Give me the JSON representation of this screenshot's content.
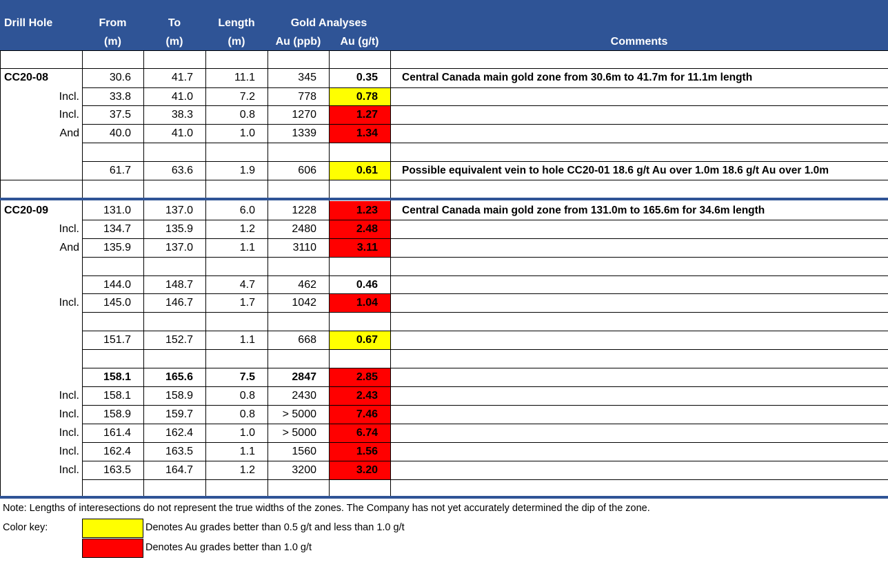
{
  "header": {
    "drill_hole": "Drill Hole",
    "from": "From",
    "from_unit": "(m)",
    "to": "To",
    "to_unit": "(m)",
    "length": "Length",
    "length_unit": "(m)",
    "gold_analyses": "Gold Analyses",
    "au_ppb": "Au (ppb)",
    "au_gt": "Au (g/t)",
    "comments": "Comments"
  },
  "colors": {
    "header_bg": "#2F5496",
    "yellow": "#FFFF00",
    "red": "#FF0000"
  },
  "rows": [
    {
      "hole": "",
      "from": "",
      "to": "",
      "length": "",
      "ppb": "",
      "gt": "",
      "color": "",
      "comment": ""
    },
    {
      "hole": "CC20-08",
      "from": "30.6",
      "to": "41.7",
      "length": "11.1",
      "ppb": "345",
      "gt": "0.35",
      "color": "",
      "comment": "Central Canada main gold zone from 30.6m to 41.7m for 11.1m length"
    },
    {
      "hole": "Incl.",
      "from": "33.8",
      "to": "41.0",
      "length": "7.2",
      "ppb": "778",
      "gt": "0.78",
      "color": "yellow",
      "comment": ""
    },
    {
      "hole": "Incl.",
      "from": "37.5",
      "to": "38.3",
      "length": "0.8",
      "ppb": "1270",
      "gt": "1.27",
      "color": "red",
      "comment": ""
    },
    {
      "hole": "And",
      "from": "40.0",
      "to": "41.0",
      "length": "1.0",
      "ppb": "1339",
      "gt": "1.34",
      "color": "red",
      "comment": ""
    },
    {
      "hole": "",
      "from": "",
      "to": "",
      "length": "",
      "ppb": "",
      "gt": "",
      "color": "",
      "comment": ""
    },
    {
      "hole": "",
      "from": "61.7",
      "to": "63.6",
      "length": "1.9",
      "ppb": "606",
      "gt": "0.61",
      "color": "yellow",
      "comment": "Possible equivalent vein to hole CC20-01 18.6 g/t Au over 1.0m 18.6 g/t Au over 1.0m"
    },
    {
      "hole": "",
      "from": "",
      "to": "",
      "length": "",
      "ppb": "",
      "gt": "",
      "color": "",
      "comment": ""
    },
    {
      "hole": "CC20-09",
      "from": "131.0",
      "to": "137.0",
      "length": "6.0",
      "ppb": "1228",
      "gt": "1.23",
      "color": "red",
      "comment": "Central Canada main gold zone from 131.0m to 165.6m for 34.6m length"
    },
    {
      "hole": "Incl.",
      "from": "134.7",
      "to": "135.9",
      "length": "1.2",
      "ppb": "2480",
      "gt": "2.48",
      "color": "red",
      "comment": ""
    },
    {
      "hole": "And",
      "from": "135.9",
      "to": "137.0",
      "length": "1.1",
      "ppb": "3110",
      "gt": "3.11",
      "color": "red",
      "comment": ""
    },
    {
      "hole": "",
      "from": "",
      "to": "",
      "length": "",
      "ppb": "",
      "gt": "",
      "color": "",
      "comment": ""
    },
    {
      "hole": "",
      "from": "144.0",
      "to": "148.7",
      "length": "4.7",
      "ppb": "462",
      "gt": "0.46",
      "color": "",
      "comment": ""
    },
    {
      "hole": "Incl.",
      "from": "145.0",
      "to": "146.7",
      "length": "1.7",
      "ppb": "1042",
      "gt": "1.04",
      "color": "red",
      "comment": ""
    },
    {
      "hole": "",
      "from": "",
      "to": "",
      "length": "",
      "ppb": "",
      "gt": "",
      "color": "",
      "comment": ""
    },
    {
      "hole": "",
      "from": "151.7",
      "to": "152.7",
      "length": "1.1",
      "ppb": "668",
      "gt": "0.67",
      "color": "yellow",
      "comment": ""
    },
    {
      "hole": "",
      "from": "",
      "to": "",
      "length": "",
      "ppb": "",
      "gt": "",
      "color": "",
      "comment": ""
    },
    {
      "hole": "",
      "from": "158.1",
      "to": "165.6",
      "length": "7.5",
      "ppb": "2847",
      "gt": "2.85",
      "color": "red",
      "comment": "",
      "bold": true
    },
    {
      "hole": "Incl.",
      "from": "158.1",
      "to": "158.9",
      "length": "0.8",
      "ppb": "2430",
      "gt": "2.43",
      "color": "red",
      "comment": ""
    },
    {
      "hole": "Incl.",
      "from": "158.9",
      "to": "159.7",
      "length": "0.8",
      "ppb": "> 5000",
      "gt": "7.46",
      "color": "red",
      "comment": ""
    },
    {
      "hole": "Incl.",
      "from": "161.4",
      "to": "162.4",
      "length": "1.0",
      "ppb": "> 5000",
      "gt": "6.74",
      "color": "red",
      "comment": ""
    },
    {
      "hole": "Incl.",
      "from": "162.4",
      "to": "163.5",
      "length": "1.1",
      "ppb": "1560",
      "gt": "1.56",
      "color": "red",
      "comment": ""
    },
    {
      "hole": "Incl.",
      "from": "163.5",
      "to": "164.7",
      "length": "1.2",
      "ppb": "3200",
      "gt": "3.20",
      "color": "red",
      "comment": ""
    },
    {
      "hole": "",
      "from": "",
      "to": "",
      "length": "",
      "ppb": "",
      "gt": "",
      "color": "",
      "comment": ""
    }
  ],
  "note": "Note: Lengths of interesections do not represent the true widths of the zones.  The Company has not yet accurately determined the dip of the zone.",
  "color_key": {
    "label": "Color key:",
    "yellow_text": "Denotes Au grades better than 0.5 g/t and less than 1.0 g/t",
    "red_text": "Denotes Au grades better than 1.0 g/t"
  }
}
